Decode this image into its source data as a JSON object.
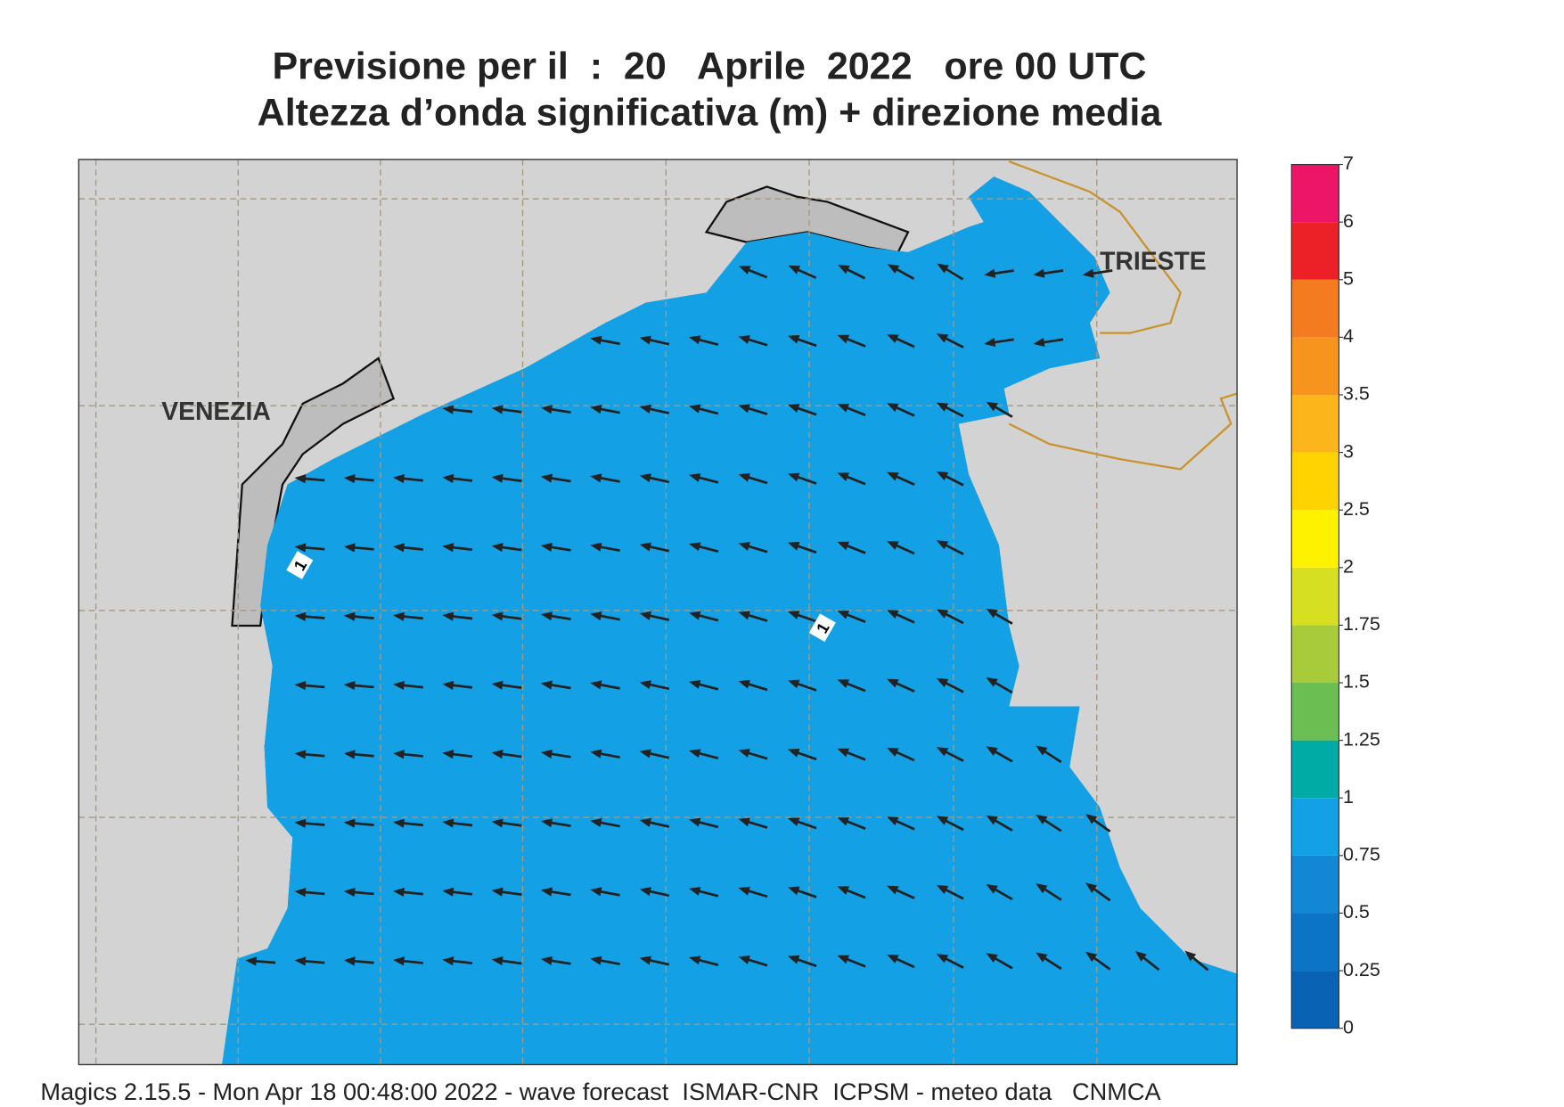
{
  "header": {
    "title_line1": "Previsione per il  :  20   Aprile  2022   ore 00 UTC",
    "title_line2": "Altezza d’onda significativa (m) + direzione media"
  },
  "map": {
    "places": [
      "VENEZIA",
      "TRIESTE"
    ],
    "contour_labels": [
      "1",
      "1"
    ]
  },
  "colorbar": {
    "levels": [
      0,
      0.25,
      0.5,
      0.75,
      1,
      1.25,
      1.5,
      1.75,
      2,
      2.5,
      3,
      3.5,
      4,
      5,
      6,
      7
    ],
    "colors": [
      "#0a62b4",
      "#0b74c4",
      "#1288d5",
      "#14a0e4",
      "#00aba6",
      "#6abe52",
      "#a8cb3b",
      "#d6df22",
      "#fff200",
      "#ffd300",
      "#fcb61b",
      "#f7941d",
      "#f47b20",
      "#ec2027",
      "#ec1566"
    ]
  },
  "footer": "Magics 2.15.5 - Mon Apr 18 00:48:00 2022 - wave forecast  ISMAR-CNR  ICPSM - meteo data   CNMCA"
}
